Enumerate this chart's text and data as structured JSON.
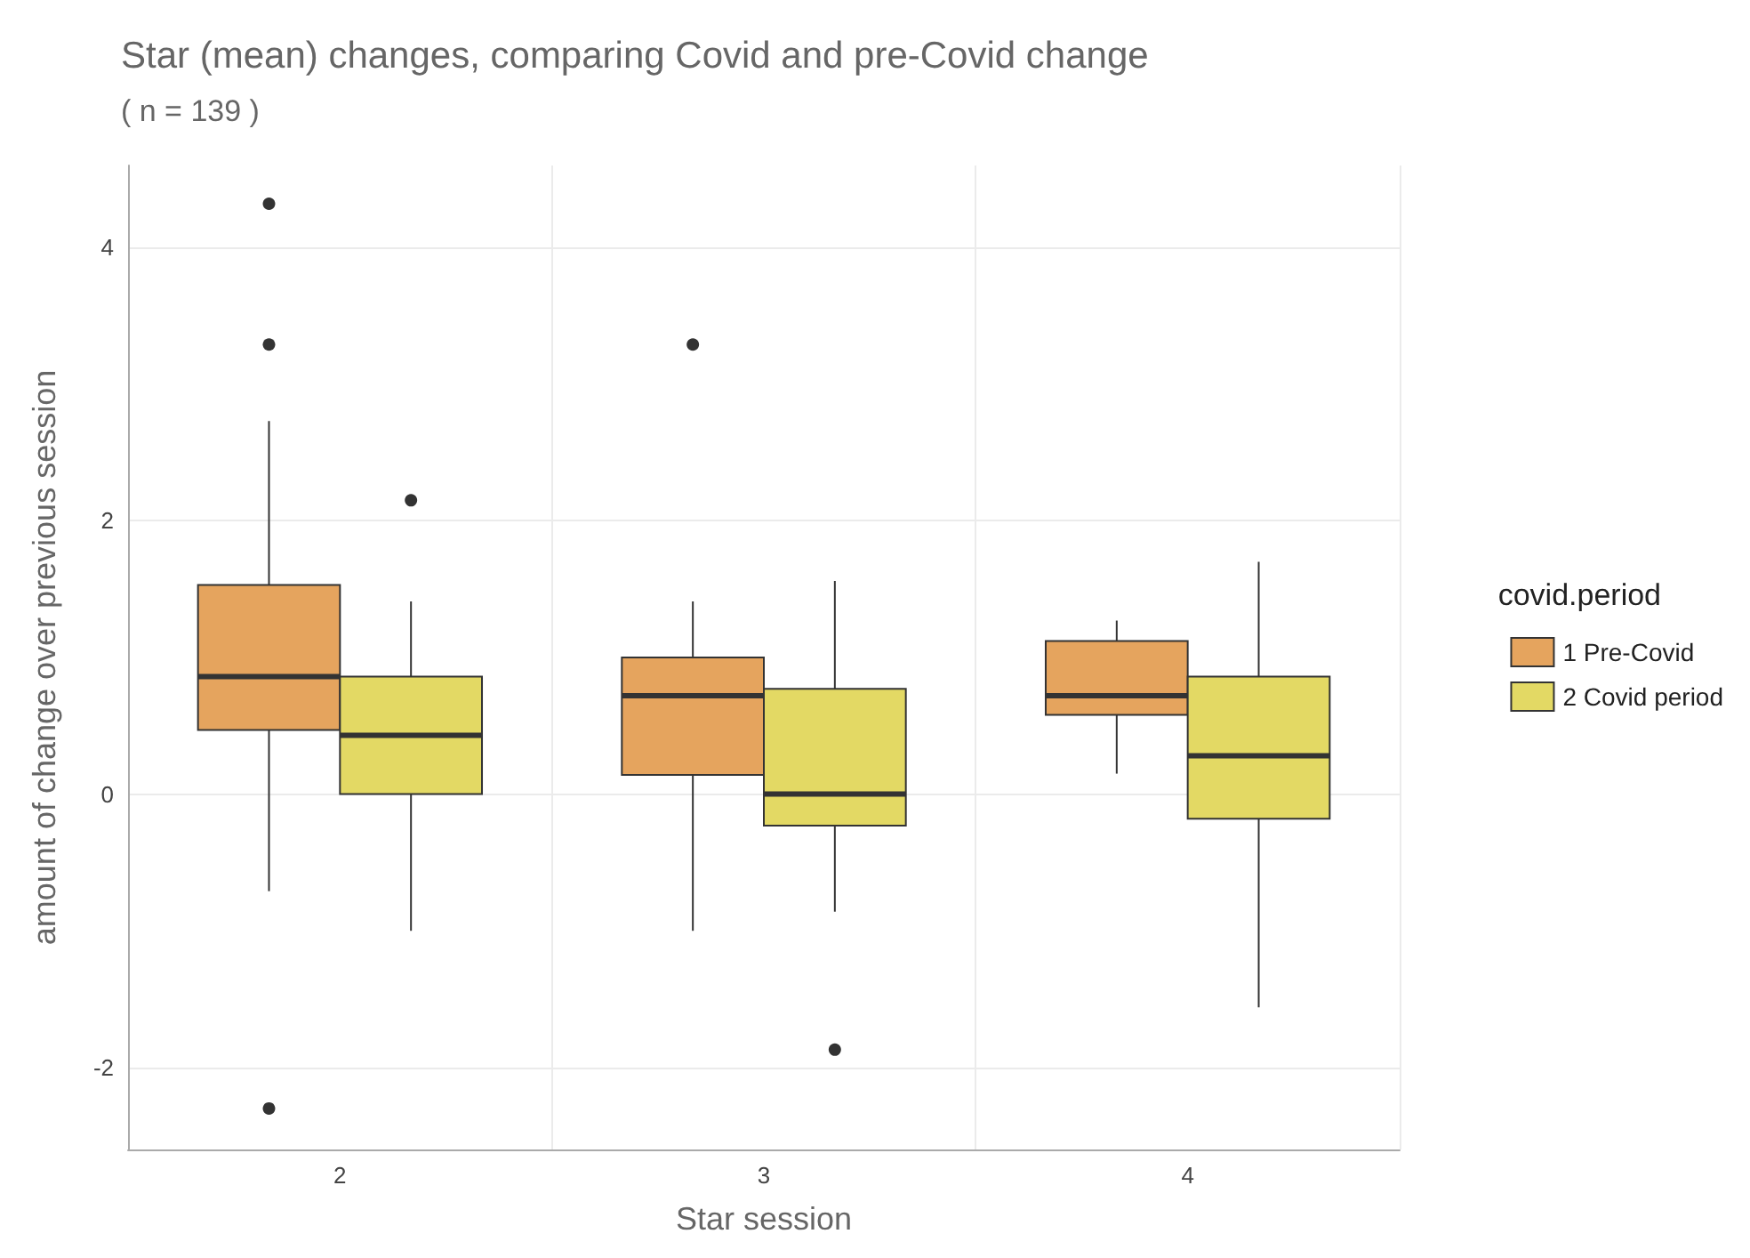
{
  "chart_data": {
    "type": "box",
    "title": "Star (mean) changes, comparing Covid and pre-Covid change",
    "subtitle": "( n = 139 )",
    "xlabel": "Star session",
    "ylabel": "amount of change over previous session",
    "legend_title": "covid.period",
    "categories": [
      "2",
      "3",
      "4"
    ],
    "ylim": [
      -2.6,
      4.6
    ],
    "yticks": [
      -2,
      0,
      2,
      4
    ],
    "grid": true,
    "legend": "right",
    "series": [
      {
        "name": "1 Pre-Covid",
        "color": "#e5a45e",
        "boxes": [
          {
            "low": -0.71,
            "q1": 0.47,
            "median": 0.86,
            "q3": 1.53,
            "high": 2.73,
            "outliers": [
              4.32,
              3.29,
              -2.3
            ]
          },
          {
            "low": -1.0,
            "q1": 0.14,
            "median": 0.72,
            "q3": 1.0,
            "high": 1.41,
            "outliers": [
              3.29
            ]
          },
          {
            "low": 0.15,
            "q1": 0.58,
            "median": 0.72,
            "q3": 1.12,
            "high": 1.27
          }
        ]
      },
      {
        "name": "2 Covid period",
        "color": "#e3d964",
        "boxes": [
          {
            "low": -1.0,
            "q1": 0.0,
            "median": 0.43,
            "q3": 0.86,
            "high": 1.41,
            "outliers": [
              2.15
            ]
          },
          {
            "low": -0.86,
            "q1": -0.23,
            "median": 0.0,
            "q3": 0.77,
            "high": 1.56,
            "outliers": [
              -1.87
            ]
          },
          {
            "low": -1.56,
            "q1": -0.18,
            "median": 0.28,
            "q3": 0.86,
            "high": 1.7
          }
        ]
      }
    ]
  }
}
